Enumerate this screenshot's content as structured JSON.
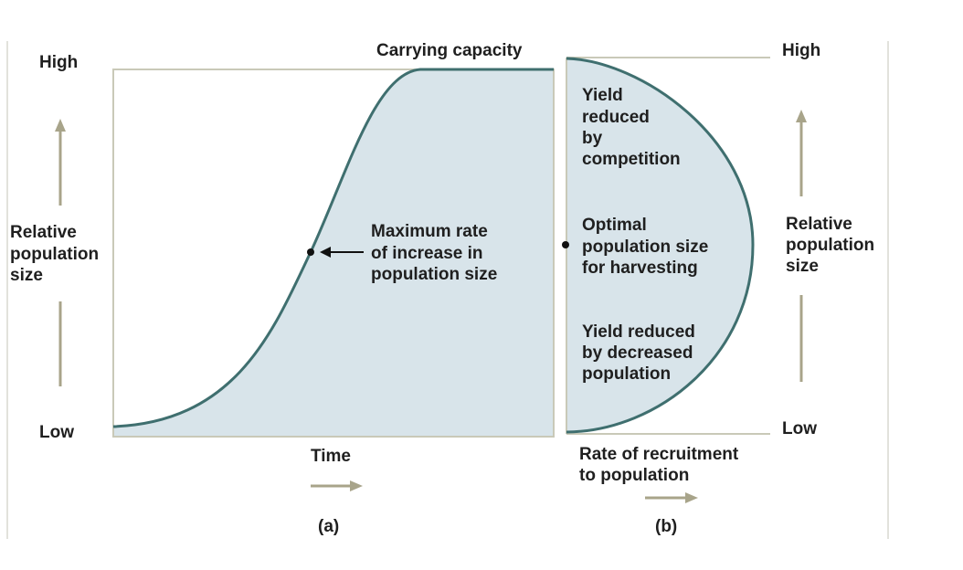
{
  "panel_a": {
    "y_high": "High",
    "y_low": "Low",
    "y_label": [
      "Relative",
      "population",
      "size"
    ],
    "top_label": "Carrying capacity",
    "annotation": [
      "Maximum rate",
      "of increase in",
      "population size"
    ],
    "x_label": "Time",
    "letter": "(a)"
  },
  "panel_b": {
    "y_high": "High",
    "y_low": "Low",
    "y_label": [
      "Relative",
      "population",
      "size"
    ],
    "zone_top": [
      "Yield",
      "reduced",
      "by",
      "competition"
    ],
    "zone_mid": [
      "Optimal",
      "population size",
      "for harvesting"
    ],
    "zone_bottom": [
      "Yield reduced",
      "by decreased",
      "population"
    ],
    "x_label": [
      "Rate of recruitment",
      "to population"
    ],
    "letter": "(b)"
  },
  "colors": {
    "fill": "#d8e4ea",
    "curve": "#3f6f6f",
    "frame": "#c9c9b8",
    "arrow": "#a8a48a",
    "text": "#1f1f1f"
  }
}
